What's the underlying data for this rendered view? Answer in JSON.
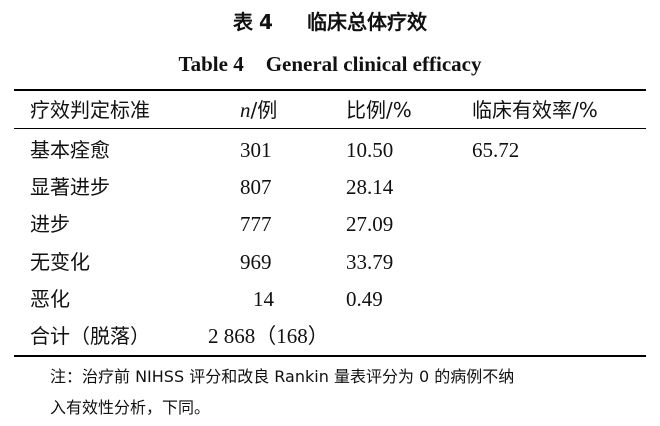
{
  "title": {
    "cn_label": "表",
    "cn_number": "4",
    "cn_text": "临床总体疗效",
    "en_label": "Table 4",
    "en_text": "General clinical efficacy"
  },
  "table": {
    "headers": {
      "criteria": "疗效判定标准",
      "n_italic": "n",
      "n_rest": "/例",
      "ratio": "比例/%",
      "efficacy_rate": "临床有效率/%"
    },
    "rows": [
      {
        "criteria": "基本痊愈",
        "n": "301",
        "ratio": "10.50",
        "efficacy_rate": "65.72"
      },
      {
        "criteria": "显著进步",
        "n": "807",
        "ratio": "28.14",
        "efficacy_rate": ""
      },
      {
        "criteria": "进步",
        "n": "777",
        "ratio": "27.09",
        "efficacy_rate": ""
      },
      {
        "criteria": "无变化",
        "n": "969",
        "ratio": "33.79",
        "efficacy_rate": ""
      },
      {
        "criteria": "恶化",
        "n": "14",
        "ratio": "0.49",
        "efficacy_rate": ""
      }
    ],
    "total": {
      "label": "合计（脱落）",
      "value": "2 868（168）"
    }
  },
  "note": {
    "line1": "注：治疗前 NIHSS 评分和改良 Rankin 量表评分为 0 的病例不纳",
    "line2": "入有效性分析，下同。"
  }
}
